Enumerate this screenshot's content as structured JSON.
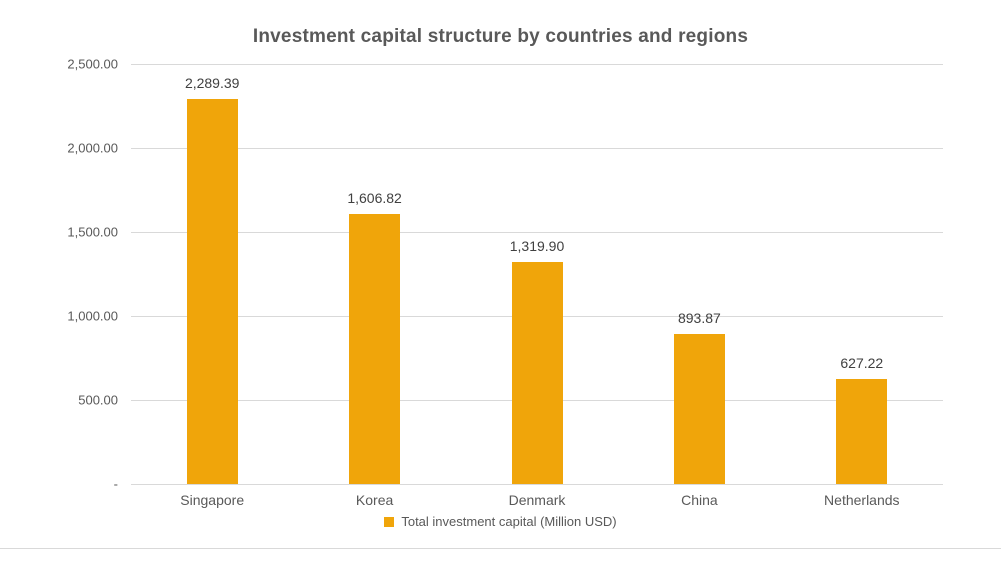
{
  "chart_data": {
    "type": "bar",
    "title": "Investment capital structure by countries and regions",
    "categories": [
      "Singapore",
      "Korea",
      "Denmark",
      "China",
      "Netherlands"
    ],
    "values": [
      2289.39,
      1606.82,
      1319.9,
      893.87,
      627.22
    ],
    "data_labels": [
      "2,289.39",
      "1,606.82",
      "1,319.90",
      "893.87",
      "627.22"
    ],
    "series": [
      {
        "name": "Total investment capital (Million USD)",
        "values": [
          2289.39,
          1606.82,
          1319.9,
          893.87,
          627.22
        ]
      }
    ],
    "legend": {
      "label": "Total investment capital (Million USD)",
      "position": "bottom"
    },
    "xlabel": "",
    "ylabel": "",
    "ylim": [
      0,
      2500
    ],
    "ytick_labels": [
      "2,500.00",
      "2,000.00",
      "1,500.00",
      "1,000.00",
      "500.00",
      "-"
    ],
    "ytick_values": [
      2500,
      2000,
      1500,
      1000,
      500,
      0
    ],
    "grid": "horizontal",
    "colors": {
      "bar": "#F0A50A",
      "gridline": "#D9D9D9",
      "title_text": "#595959",
      "axis_text": "#595959",
      "data_label_text": "#404040",
      "divider": "#D9D9D9",
      "background": "#FFFFFF"
    }
  }
}
